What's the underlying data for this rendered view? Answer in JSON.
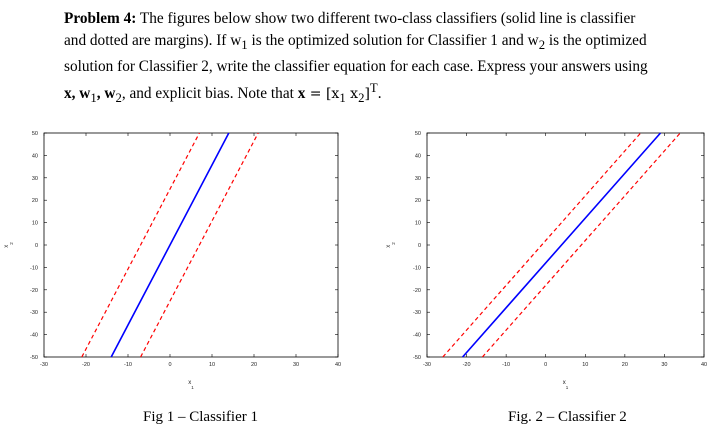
{
  "problem": {
    "lead": "Problem 4:",
    "line1_rest": " The figures below show two different two-class classifiers (solid line is classifier",
    "line2": "and dotted are margins).  If w",
    "line2_sub1": "1",
    "line2_mid": " is the optimized solution for Classifier 1 and w",
    "line2_sub2": "2",
    "line2_end": " is the optimized",
    "line3": "solution for Classifier 2, write the classifier equation for each case.  Express your answers using",
    "line4_a": "x, w",
    "line4_s1": "1",
    "line4_b": ", w",
    "line4_s2": "2",
    "line4_c": ", and explicit bias.  Note that ",
    "line4_x": "x",
    "line4_eq": " = [x",
    "line4_xs1": "1",
    "line4_sp": "   x",
    "line4_xs2": "2",
    "line4_T": "]",
    "line4_sup": "T",
    "line4_end": "."
  },
  "colors": {
    "classifier": "#0000ff",
    "margin": "#ff0000",
    "frame": "#000000"
  },
  "chart_data": [
    {
      "type": "line",
      "title": "",
      "xlabel": "x1",
      "ylabel": "x2",
      "xlim": [
        -30,
        40
      ],
      "ylim": [
        -50,
        50
      ],
      "xticks": [
        -30,
        -20,
        -10,
        0,
        10,
        20,
        30,
        40
      ],
      "yticks": [
        -50,
        -40,
        -30,
        -20,
        -10,
        0,
        10,
        20,
        30,
        40,
        50
      ],
      "series": [
        {
          "style": "solid",
          "x": [
            -14,
            14
          ],
          "y": [
            -50,
            50
          ]
        },
        {
          "style": "dotted",
          "x": [
            -21,
            7
          ],
          "y": [
            -50,
            50
          ]
        },
        {
          "style": "dotted",
          "x": [
            -7,
            21
          ],
          "y": [
            -50,
            50
          ]
        }
      ],
      "caption": "Fig 1 – Classifier 1"
    },
    {
      "type": "line",
      "title": "",
      "xlabel": "x1",
      "ylabel": "x2",
      "xlim": [
        -30,
        40
      ],
      "ylim": [
        -50,
        50
      ],
      "xticks": [
        -30,
        -20,
        -10,
        0,
        10,
        20,
        30,
        40
      ],
      "yticks": [
        -50,
        -40,
        -30,
        -20,
        -10,
        0,
        10,
        20,
        30,
        40,
        50
      ],
      "series": [
        {
          "style": "solid",
          "x": [
            -21,
            29
          ],
          "y": [
            -50,
            50
          ]
        },
        {
          "style": "dotted",
          "x": [
            -26,
            24
          ],
          "y": [
            -50,
            50
          ]
        },
        {
          "style": "dotted",
          "x": [
            -16,
            34
          ],
          "y": [
            -50,
            50
          ]
        }
      ],
      "caption": "Fig. 2 – Classifier 2"
    }
  ]
}
